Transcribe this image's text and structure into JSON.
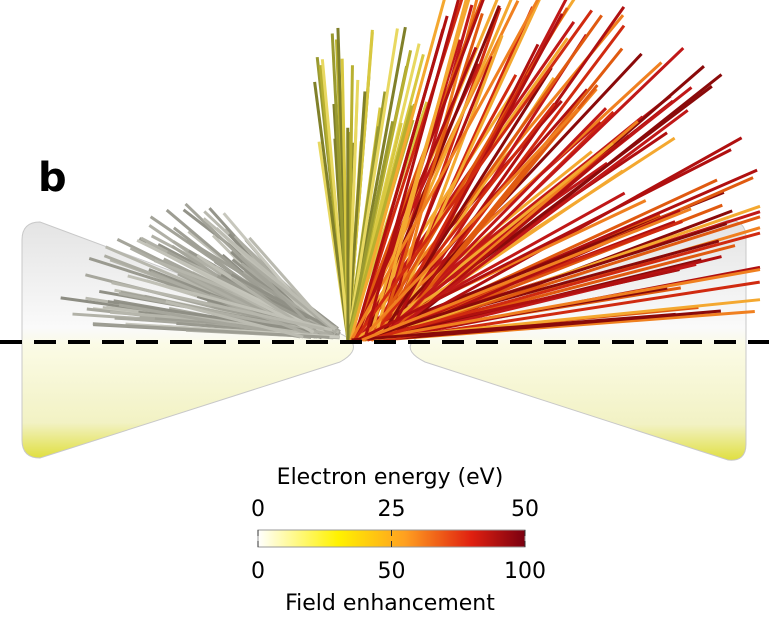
{
  "panel_label": "b",
  "colorbar": {
    "top": {
      "title": "Electron energy (eV)",
      "ticks": [
        0,
        25,
        50
      ]
    },
    "bottom": {
      "title": "Field enhancement",
      "ticks": [
        0,
        50,
        100
      ]
    }
  }
}
